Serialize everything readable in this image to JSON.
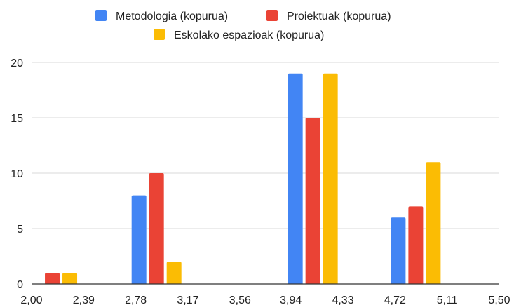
{
  "chart_data": {
    "type": "bar",
    "title": "",
    "xlabel": "",
    "ylabel": "",
    "x_ticks": [
      "2,00",
      "2,39",
      "2,78",
      "3,17",
      "3,56",
      "3,94",
      "4,33",
      "4,72",
      "5,11",
      "5,50"
    ],
    "x_range": [
      2.0,
      5.5
    ],
    "ylim": [
      0,
      20
    ],
    "y_ticks": [
      "0",
      "5",
      "10",
      "15",
      "20"
    ],
    "grid": true,
    "legend": "top",
    "groups": [
      {
        "center": 2.155,
        "values": [
          0,
          1,
          1
        ]
      },
      {
        "center": 2.935,
        "values": [
          8,
          10,
          2
        ]
      },
      {
        "center": 4.105,
        "values": [
          19,
          15,
          19
        ]
      },
      {
        "center": 4.875,
        "values": [
          6,
          7,
          11
        ]
      }
    ],
    "series": [
      {
        "name": "Metodologia (kopurua)",
        "color": "#4285F4"
      },
      {
        "name": "Proiektuak (kopurua)",
        "color": "#EA4335"
      },
      {
        "name": "Eskolako espazioak (kopurua)",
        "color": "#FBBC04"
      }
    ]
  }
}
